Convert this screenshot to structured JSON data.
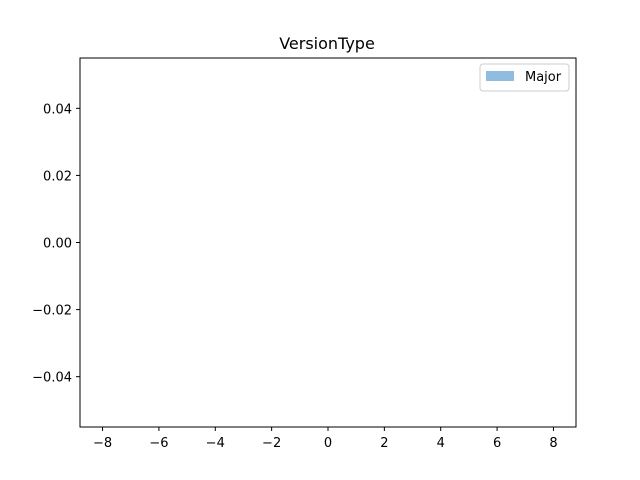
{
  "chart_data": {
    "type": "bar",
    "title": "VersionType",
    "xlabel": "",
    "ylabel": "",
    "xlim": [
      -8.8,
      8.8
    ],
    "ylim": [
      -0.055,
      0.055
    ],
    "x_ticks": [
      -8,
      -6,
      -4,
      -2,
      0,
      2,
      4,
      6,
      8
    ],
    "x_tick_labels": [
      "−8",
      "−6",
      "−4",
      "−2",
      "0",
      "2",
      "4",
      "6",
      "8"
    ],
    "y_ticks": [
      0.04,
      0.02,
      0.0,
      -0.02,
      -0.04
    ],
    "y_tick_labels": [
      "0.04",
      "0.02",
      "0.00",
      "−0.02",
      "−0.04"
    ],
    "grid": false,
    "legend_position": "top-right",
    "series": [
      {
        "name": "Major",
        "color": "#8fbcdf",
        "values": []
      }
    ]
  }
}
